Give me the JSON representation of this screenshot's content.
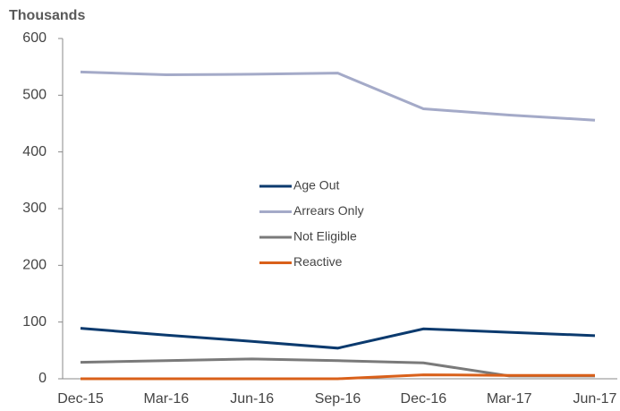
{
  "chart_data": {
    "type": "line",
    "y_label": "Thousands",
    "categories": [
      "Dec-15",
      "Mar-16",
      "Jun-16",
      "Sep-16",
      "Dec-16",
      "Mar-17",
      "Jun-17"
    ],
    "series": [
      {
        "name": "Age Out",
        "color": "#0b3a6e",
        "values": [
          89,
          77,
          66,
          54,
          88,
          82,
          76
        ]
      },
      {
        "name": "Arrears Only",
        "color": "#a4aac8",
        "values": [
          541,
          536,
          537,
          539,
          476,
          465,
          456
        ]
      },
      {
        "name": "Not Eligible",
        "color": "#7a7a7a",
        "values": [
          29,
          32,
          35,
          32,
          28,
          5,
          5
        ]
      },
      {
        "name": "Reactive",
        "color": "#d9601a",
        "values": [
          0,
          0,
          0,
          0,
          7,
          6,
          6
        ]
      }
    ],
    "ylim": [
      0,
      600
    ],
    "yticks": [
      0,
      100,
      200,
      300,
      400,
      500,
      600
    ],
    "grid": false
  }
}
